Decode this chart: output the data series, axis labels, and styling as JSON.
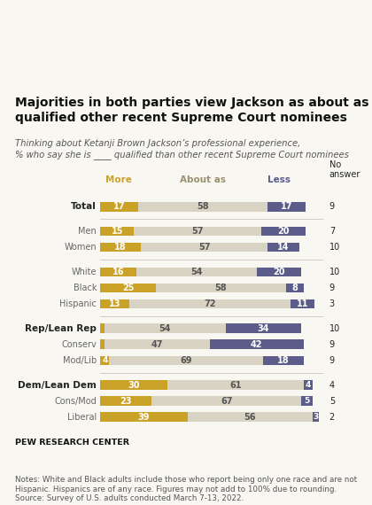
{
  "title": "Majorities in both parties view Jackson as about as\nqualified other recent Supreme Court nominees",
  "subtitle_line1": "Thinking about Ketanji Brown Jackson’s professional experience,",
  "subtitle_line2": "% who say she is ____ qualified than other recent Supreme Court nominees",
  "categories": [
    "Total",
    "Men",
    "Women",
    "White",
    "Black",
    "Hispanic",
    "Rep/Lean Rep",
    "Conserv",
    "Mod/Lib",
    "Dem/Lean Dem",
    "Cons/Mod",
    "Liberal"
  ],
  "bold_rows": [
    0,
    6,
    9
  ],
  "separator_after": [
    0,
    2,
    5,
    8
  ],
  "more": [
    17,
    15,
    18,
    16,
    25,
    13,
    2,
    2,
    4,
    30,
    23,
    39
  ],
  "about_as": [
    58,
    57,
    57,
    54,
    58,
    72,
    54,
    47,
    69,
    61,
    67,
    56
  ],
  "less": [
    17,
    20,
    14,
    20,
    8,
    11,
    34,
    42,
    18,
    4,
    5,
    3
  ],
  "no_answer": [
    9,
    7,
    10,
    10,
    9,
    3,
    10,
    9,
    9,
    4,
    5,
    2
  ],
  "color_more": "#C9A227",
  "color_about": "#D9D3C3",
  "color_less": "#5C5C8A",
  "color_bg": "#F9F7F2",
  "color_text_dark": "#222222",
  "color_text_mid": "#666666",
  "color_text_light": "#999999",
  "notes": "Notes: White and Black adults include those who report being only one race and are not\nHispanic. Hispanics are of any race. Figures may not add to 100% due to rounding.\nSource: Survey of U.S. adults conducted March 7-13, 2022.",
  "source_bold": "PEW RESEARCH CENTER",
  "legend_more": "More",
  "legend_about": "About as",
  "legend_less": "Less",
  "legend_no_answer": "No\nanswer"
}
